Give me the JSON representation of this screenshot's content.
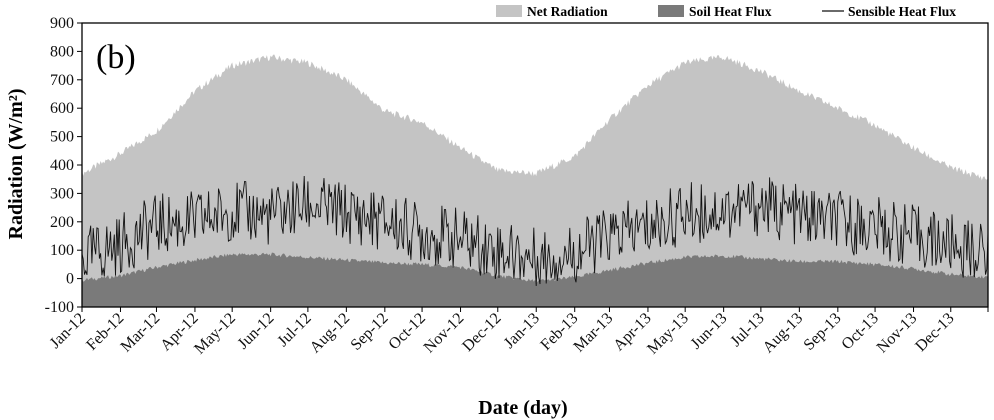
{
  "chart_data": {
    "type": "area",
    "panel_label": "(b)",
    "xlabel": "Date (day)",
    "ylabel": "Radiation (W/m²)",
    "ylim": [
      -100,
      900
    ],
    "yticks": [
      -100,
      0,
      100,
      200,
      300,
      400,
      500,
      600,
      700,
      800,
      900
    ],
    "xrange": [
      "2012-01-01",
      "2013-12-31"
    ],
    "grid": false,
    "legend_position": "top-right",
    "categories": [
      "Jan-12",
      "Feb-12",
      "Mar-12",
      "Apr-12",
      "May-12",
      "Jun-12",
      "Jul-12",
      "Aug-12",
      "Sep-12",
      "Oct-12",
      "Nov-12",
      "Dec-12",
      "Jan-13",
      "Feb-13",
      "Mar-13",
      "Apr-13",
      "May-13",
      "Jun-13",
      "Jul-13",
      "Aug-13",
      "Sep-13",
      "Oct-13",
      "Nov-13",
      "Dec-13"
    ],
    "series": [
      {
        "name": "Net Radiation",
        "style": "area",
        "color": "#c4c4c4",
        "x": [
          "2012-01-01",
          "2012-02-01",
          "2012-03-01",
          "2012-04-01",
          "2012-05-01",
          "2012-06-01",
          "2012-07-01",
          "2012-08-01",
          "2012-09-01",
          "2012-10-01",
          "2012-11-01",
          "2012-12-01",
          "2013-01-01",
          "2013-02-01",
          "2013-03-01",
          "2013-04-01",
          "2013-05-01",
          "2013-06-01",
          "2013-07-01",
          "2013-08-01",
          "2013-09-01",
          "2013-10-01",
          "2013-11-01",
          "2013-12-01",
          "2013-12-31"
        ],
        "values": [
          370,
          440,
          520,
          660,
          750,
          780,
          760,
          700,
          590,
          550,
          460,
          380,
          370,
          430,
          560,
          680,
          760,
          780,
          730,
          660,
          600,
          540,
          460,
          390,
          350
        ]
      },
      {
        "name": "Soil Heat Flux",
        "style": "area",
        "color": "#7a7a7a",
        "x": [
          "2012-01-01",
          "2012-02-01",
          "2012-03-01",
          "2012-04-01",
          "2012-05-01",
          "2012-06-01",
          "2012-07-01",
          "2012-08-01",
          "2012-09-01",
          "2012-10-01",
          "2012-11-01",
          "2012-12-01",
          "2013-01-01",
          "2013-02-01",
          "2013-03-01",
          "2013-04-01",
          "2013-05-01",
          "2013-06-01",
          "2013-07-01",
          "2013-08-01",
          "2013-09-01",
          "2013-10-01",
          "2013-11-01",
          "2013-12-01",
          "2013-12-31"
        ],
        "values": [
          -5,
          10,
          40,
          65,
          85,
          85,
          75,
          65,
          55,
          50,
          40,
          10,
          -10,
          5,
          30,
          55,
          75,
          80,
          70,
          60,
          60,
          50,
          35,
          15,
          5
        ]
      },
      {
        "name": "Sensible Heat Flux",
        "style": "line",
        "color": "#111111",
        "x": [
          "2012-01-01",
          "2012-02-01",
          "2012-03-01",
          "2012-04-01",
          "2012-05-01",
          "2012-06-01",
          "2012-07-01",
          "2012-08-01",
          "2012-09-01",
          "2012-10-01",
          "2012-11-01",
          "2012-12-01",
          "2013-01-01",
          "2013-02-01",
          "2013-03-01",
          "2013-04-01",
          "2013-05-01",
          "2013-06-01",
          "2013-07-01",
          "2013-08-01",
          "2013-09-01",
          "2013-10-01",
          "2013-11-01",
          "2013-12-01",
          "2013-12-31"
        ],
        "values": [
          70,
          120,
          190,
          200,
          240,
          220,
          260,
          230,
          200,
          160,
          140,
          100,
          70,
          90,
          150,
          180,
          230,
          240,
          260,
          220,
          200,
          180,
          150,
          120,
          80
        ]
      }
    ]
  }
}
